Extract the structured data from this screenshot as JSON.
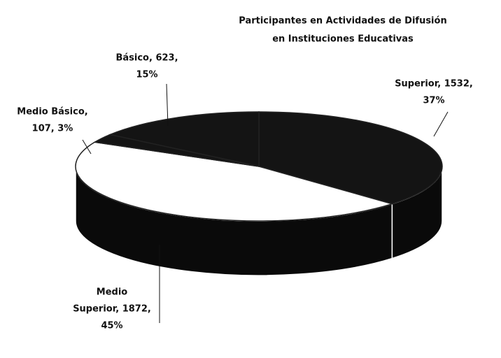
{
  "chart_data": {
    "type": "pie3d",
    "title": [
      "Participantes en Actividades de Difusión",
      "en Instituciones Educativas"
    ],
    "values": [
      1532,
      1872,
      107,
      623
    ],
    "colors": [
      "#141414",
      "#ffffff",
      "#141414",
      "#141414"
    ],
    "value_labels": [
      [
        "Superior, 1532,",
        "37%"
      ],
      [
        "Medio",
        "Superior, 1872,",
        "45%"
      ],
      [
        "Medio Básico,",
        "107, 3%"
      ],
      [
        "Básico, 623,",
        "15%"
      ]
    ]
  }
}
